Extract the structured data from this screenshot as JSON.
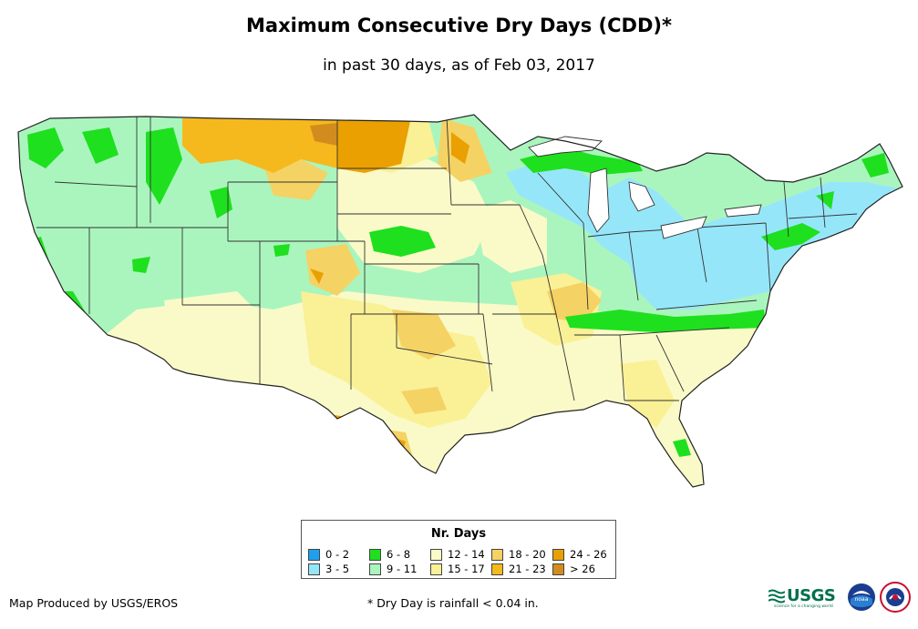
{
  "title": "Maximum Consecutive Dry Days (CDD)*",
  "subtitle": "in past 30 days, as of Feb 03, 2017",
  "legend": {
    "title": "Nr. Days",
    "items": [
      {
        "label": "0 - 2",
        "color": "#1ea0f0"
      },
      {
        "label": "6 - 8",
        "color": "#1ee01e"
      },
      {
        "label": "12 - 14",
        "color": "#fafac8"
      },
      {
        "label": "18 - 20",
        "color": "#f5d264"
      },
      {
        "label": "24 - 26",
        "color": "#e9a000"
      },
      {
        "label": "3 - 5",
        "color": "#96e6fa"
      },
      {
        "label": "9 - 11",
        "color": "#aaf5be"
      },
      {
        "label": "15 - 17",
        "color": "#faf096"
      },
      {
        "label": "21 - 23",
        "color": "#f5b91e"
      },
      {
        "label": "> 26",
        "color": "#d28c1e"
      }
    ]
  },
  "credit": "Map Produced by USGS/EROS",
  "footnote": "* Dry Day is rainfall < 0.04 in.",
  "logos": {
    "usgs": "USGS",
    "usgs_tagline": "science for a changing world",
    "noaa": "noaa"
  }
}
